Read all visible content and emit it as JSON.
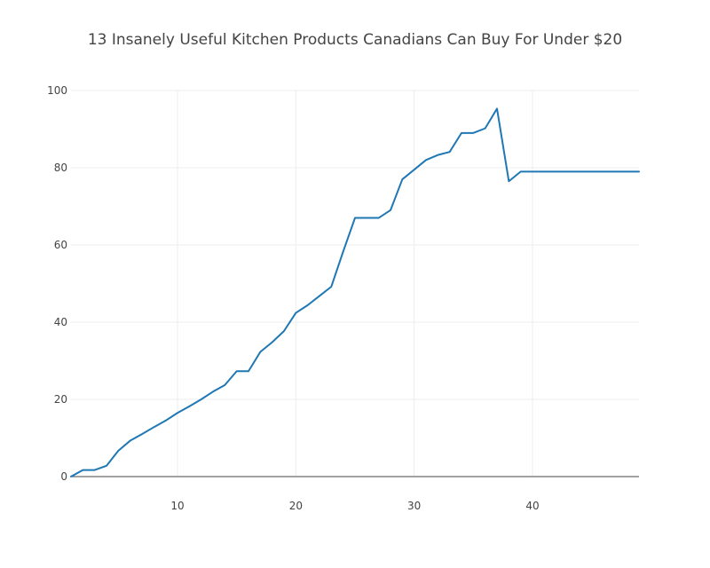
{
  "chart_data": {
    "type": "line",
    "title": "13 Insanely Useful Kitchen Products Canadians Can Buy For Under $20",
    "xlabel": "",
    "ylabel": "",
    "xlim": [
      1,
      49
    ],
    "ylim": [
      0,
      100
    ],
    "x_ticks": [
      10,
      20,
      30,
      40
    ],
    "y_ticks": [
      0,
      20,
      40,
      60,
      80,
      100
    ],
    "grid": true,
    "colors": {
      "line": "#1f77b4",
      "grid": "#eeeeee",
      "zeroline": "#444444",
      "text": "#444444"
    },
    "series": [
      {
        "x": [
          1,
          2,
          3,
          4,
          5,
          6,
          7,
          8,
          9,
          10,
          11,
          12,
          13,
          14,
          15,
          16,
          17,
          18,
          19,
          20,
          21,
          22,
          23,
          24,
          25,
          26,
          27,
          28,
          29,
          30,
          31,
          32,
          33,
          34,
          35,
          36,
          37,
          38,
          39,
          40,
          41,
          42,
          43,
          44,
          45,
          46,
          47,
          48,
          49
        ],
        "y": [
          0,
          1.7,
          1.7,
          2.8,
          6.7,
          9.3,
          11,
          12.8,
          14.5,
          16.5,
          18.2,
          20,
          22,
          23.7,
          27.3,
          27.3,
          32.3,
          34.8,
          37.7,
          42.4,
          44.4,
          46.8,
          49.2,
          58.3,
          67,
          67,
          67,
          69,
          77,
          79.5,
          82,
          83.3,
          84.1,
          89,
          89,
          90.2,
          95.3,
          76.5,
          79,
          79,
          79,
          79,
          79,
          79,
          79,
          79,
          79,
          79,
          79
        ]
      }
    ]
  }
}
